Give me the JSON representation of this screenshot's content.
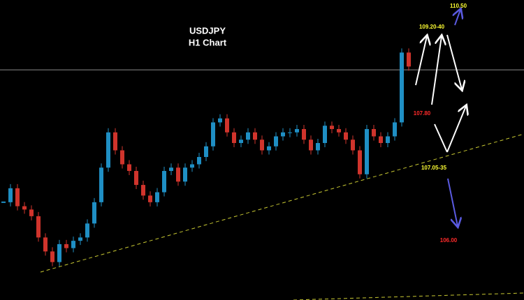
{
  "chart_data": {
    "type": "candlestick",
    "title": "USDJPY",
    "subtitle": "H1 Chart",
    "values": [
      106.47,
      106.68,
      106.41,
      106.36,
      106.26,
      105.94,
      105.73,
      105.57,
      105.84,
      105.78,
      105.89,
      105.94,
      106.15,
      106.47,
      106.99,
      107.52,
      107.25,
      107.04,
      106.94,
      106.73,
      106.57,
      106.47,
      106.62,
      106.94,
      106.99,
      106.78,
      106.99,
      107.04,
      107.15,
      107.31,
      107.67,
      107.73,
      107.52,
      107.36,
      107.41,
      107.52,
      107.41,
      107.25,
      107.31,
      107.46,
      107.52,
      107.52,
      107.57,
      107.41,
      107.25,
      107.36,
      107.62,
      107.57,
      107.52,
      107.41,
      107.25,
      106.89,
      107.57,
      107.46,
      107.36,
      107.46,
      107.67,
      108.72,
      108.51
    ],
    "up_color": "#1f8fc4",
    "down_color": "#d0342c",
    "ylim": [
      105.0,
      109.51
    ],
    "reference_line": 108.46,
    "annotations": [
      {
        "text": "110.50",
        "color": "#ffff33"
      },
      {
        "text": "109.20-40",
        "color": "#ffff33"
      },
      {
        "text": "107.80",
        "color": "#ff2a2a"
      },
      {
        "text": "107.05-35",
        "color": "#ffff33"
      },
      {
        "text": "106.00",
        "color": "#ff2a2a"
      }
    ]
  }
}
